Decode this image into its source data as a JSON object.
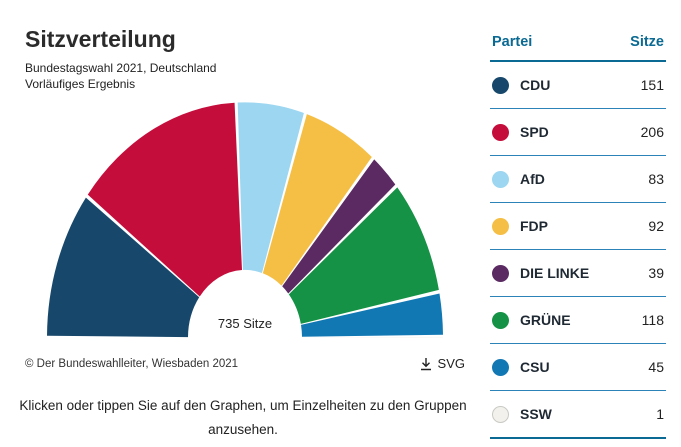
{
  "header": {
    "title": "Sitzverteilung",
    "subtitle1": "Bundestagswahl 2021, Deutschland",
    "subtitle2": "Vorläufiges Ergebnis"
  },
  "chart_data": {
    "type": "pie",
    "variant": "hemicycle",
    "title": "Sitzverteilung",
    "total": 735,
    "total_label": "735 Sitze",
    "legend_position": "right-table",
    "series": [
      {
        "name": "CDU",
        "value": 151,
        "color": "#17486b"
      },
      {
        "name": "SPD",
        "value": 206,
        "color": "#c50d3c"
      },
      {
        "name": "AfD",
        "value": 83,
        "color": "#9cd6f0"
      },
      {
        "name": "FDP",
        "value": 92,
        "color": "#f5bf45"
      },
      {
        "name": "DIE LINKE",
        "value": 39,
        "color": "#5b2a63"
      },
      {
        "name": "GRÜNE",
        "value": 118,
        "color": "#159245"
      },
      {
        "name": "CSU",
        "value": 45,
        "color": "#1278b4"
      },
      {
        "name": "SSW",
        "value": 1,
        "color": "#f2f1ec"
      }
    ]
  },
  "table": {
    "col_party": "Partei",
    "col_seats": "Sitze"
  },
  "footer": {
    "copyright": "© Der Bundeswahlleiter, Wiesbaden 2021",
    "download_label": "SVG"
  },
  "note": "Klicken oder tippen Sie auf den Graphen, um Einzelheiten zu den Gruppen anzusehen.",
  "colors": {
    "accent_blue": "#0b6a93",
    "table_line": "#2b83b8"
  }
}
